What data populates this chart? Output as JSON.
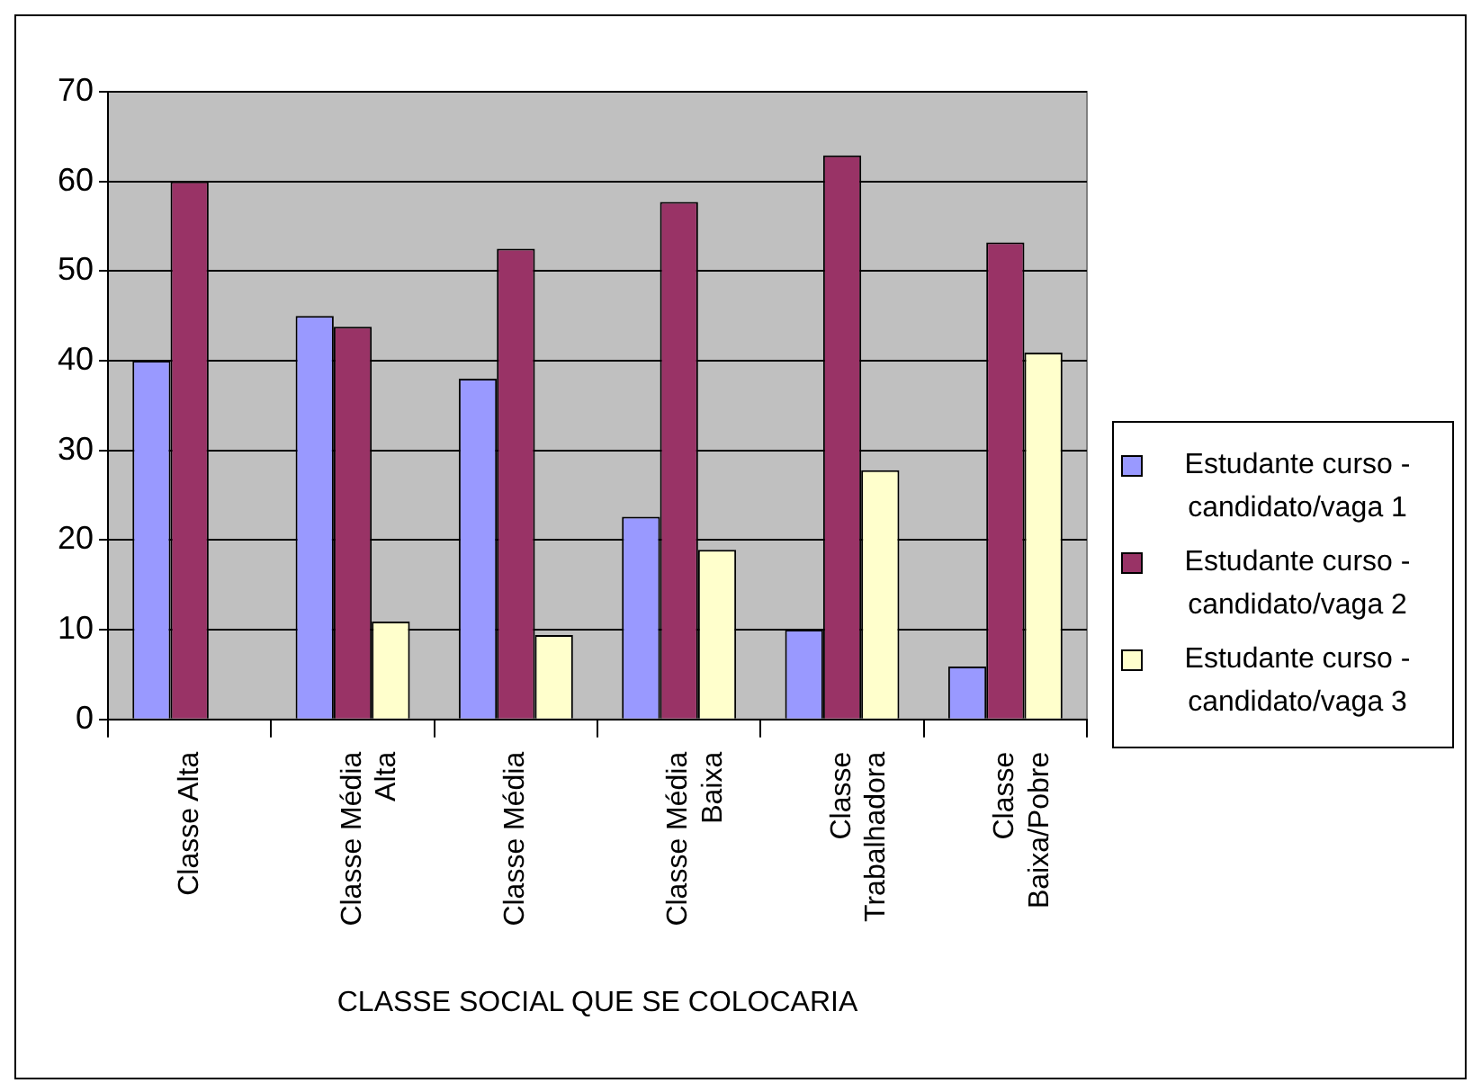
{
  "chart_data": {
    "type": "bar",
    "categories": [
      "Classe Alta",
      "Classe Média Alta",
      "Classe Média",
      "Classe Média Baixa",
      "Classe Trabalhadora",
      "Classe Baixa/Pobre"
    ],
    "xlabel": "CLASSE SOCIAL QUE SE COLOCARIA",
    "series": [
      {
        "name": "Estudante curso - candidato/vaga 1",
        "color": "#9999ff",
        "values": [
          40,
          45,
          38,
          22.6,
          10,
          5.9
        ]
      },
      {
        "name": "Estudante curso - candidato/vaga 2",
        "color": "#993366",
        "values": [
          60,
          43.8,
          52.5,
          57.7,
          62.9,
          53.2
        ]
      },
      {
        "name": "Estudante curso - candidato/vaga 3",
        "color": "#ffffcc",
        "values": [
          null,
          10.9,
          9.4,
          18.9,
          27.8,
          40.9
        ]
      }
    ],
    "ylim": [
      0,
      70
    ],
    "yticks": [
      0,
      10,
      20,
      30,
      40,
      50,
      60,
      70
    ],
    "grid": "y",
    "legend": "right"
  }
}
